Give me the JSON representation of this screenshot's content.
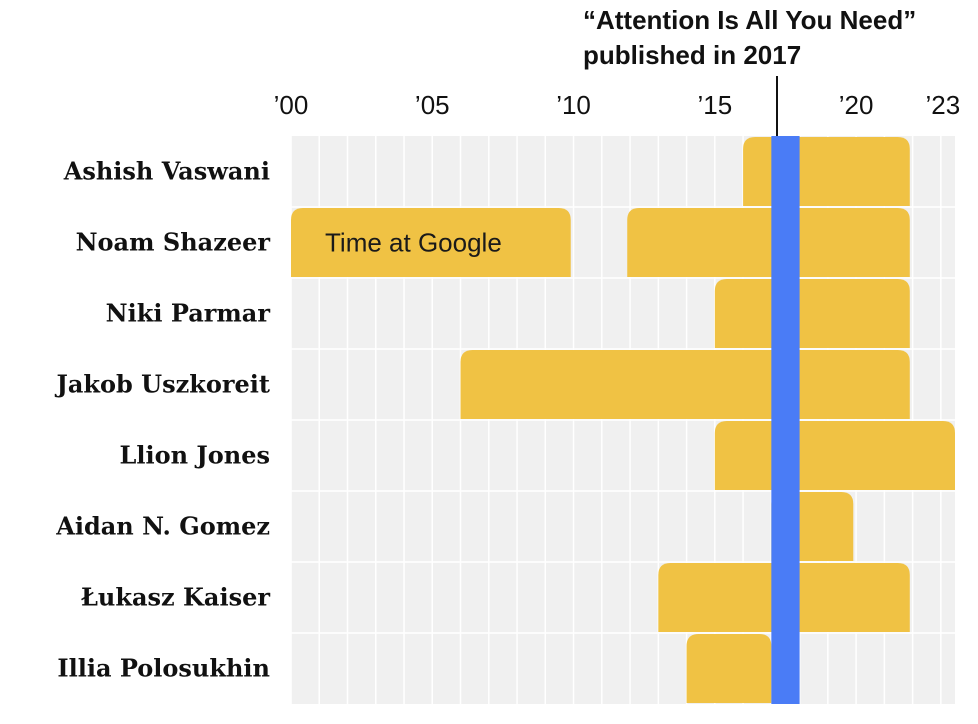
{
  "chart_data": {
    "type": "bar",
    "orientation": "horizontal",
    "subtype": "timeline",
    "x_ticks": [
      {
        "value": 2000,
        "label": "’00"
      },
      {
        "value": 2005,
        "label": "’05"
      },
      {
        "value": 2010,
        "label": "’10"
      },
      {
        "value": 2015,
        "label": "’15"
      },
      {
        "value": 2020,
        "label": "’20"
      },
      {
        "value": 2023,
        "label": "’23"
      }
    ],
    "xlim": [
      2000,
      2023.5
    ],
    "grid": true,
    "rows": [
      {
        "name": "Ashish Vaswani",
        "spans": [
          [
            2016.0,
            2021.9
          ]
        ]
      },
      {
        "name": "Noam Shazeer",
        "spans": [
          [
            2000.0,
            2009.9
          ],
          [
            2011.9,
            2021.9
          ]
        ]
      },
      {
        "name": "Niki Parmar",
        "spans": [
          [
            2015.0,
            2021.9
          ]
        ]
      },
      {
        "name": "Jakob Uszkoreit",
        "spans": [
          [
            2006.0,
            2021.9
          ]
        ]
      },
      {
        "name": "Llion Jones",
        "spans": [
          [
            2015.0,
            2023.5
          ]
        ]
      },
      {
        "name": "Aidan N. Gomez",
        "spans": [
          [
            2017.0,
            2019.9
          ]
        ]
      },
      {
        "name": "Łukasz Kaiser",
        "spans": [
          [
            2013.0,
            2021.9
          ]
        ]
      },
      {
        "name": "Illia Polosukhin",
        "spans": [
          [
            2014.0,
            2017.0
          ]
        ]
      }
    ],
    "bar_label": "Time at Google",
    "highlight": {
      "value": 2017,
      "color": "#4a7cf6"
    },
    "annotation": {
      "line1": "“Attention Is All You Need”",
      "line2": "published in 2017",
      "value": 2017.2
    },
    "colors": {
      "bar": "#f0c244",
      "grid_bg": "#f0f0f0",
      "grid_line": "#ffffff"
    }
  }
}
